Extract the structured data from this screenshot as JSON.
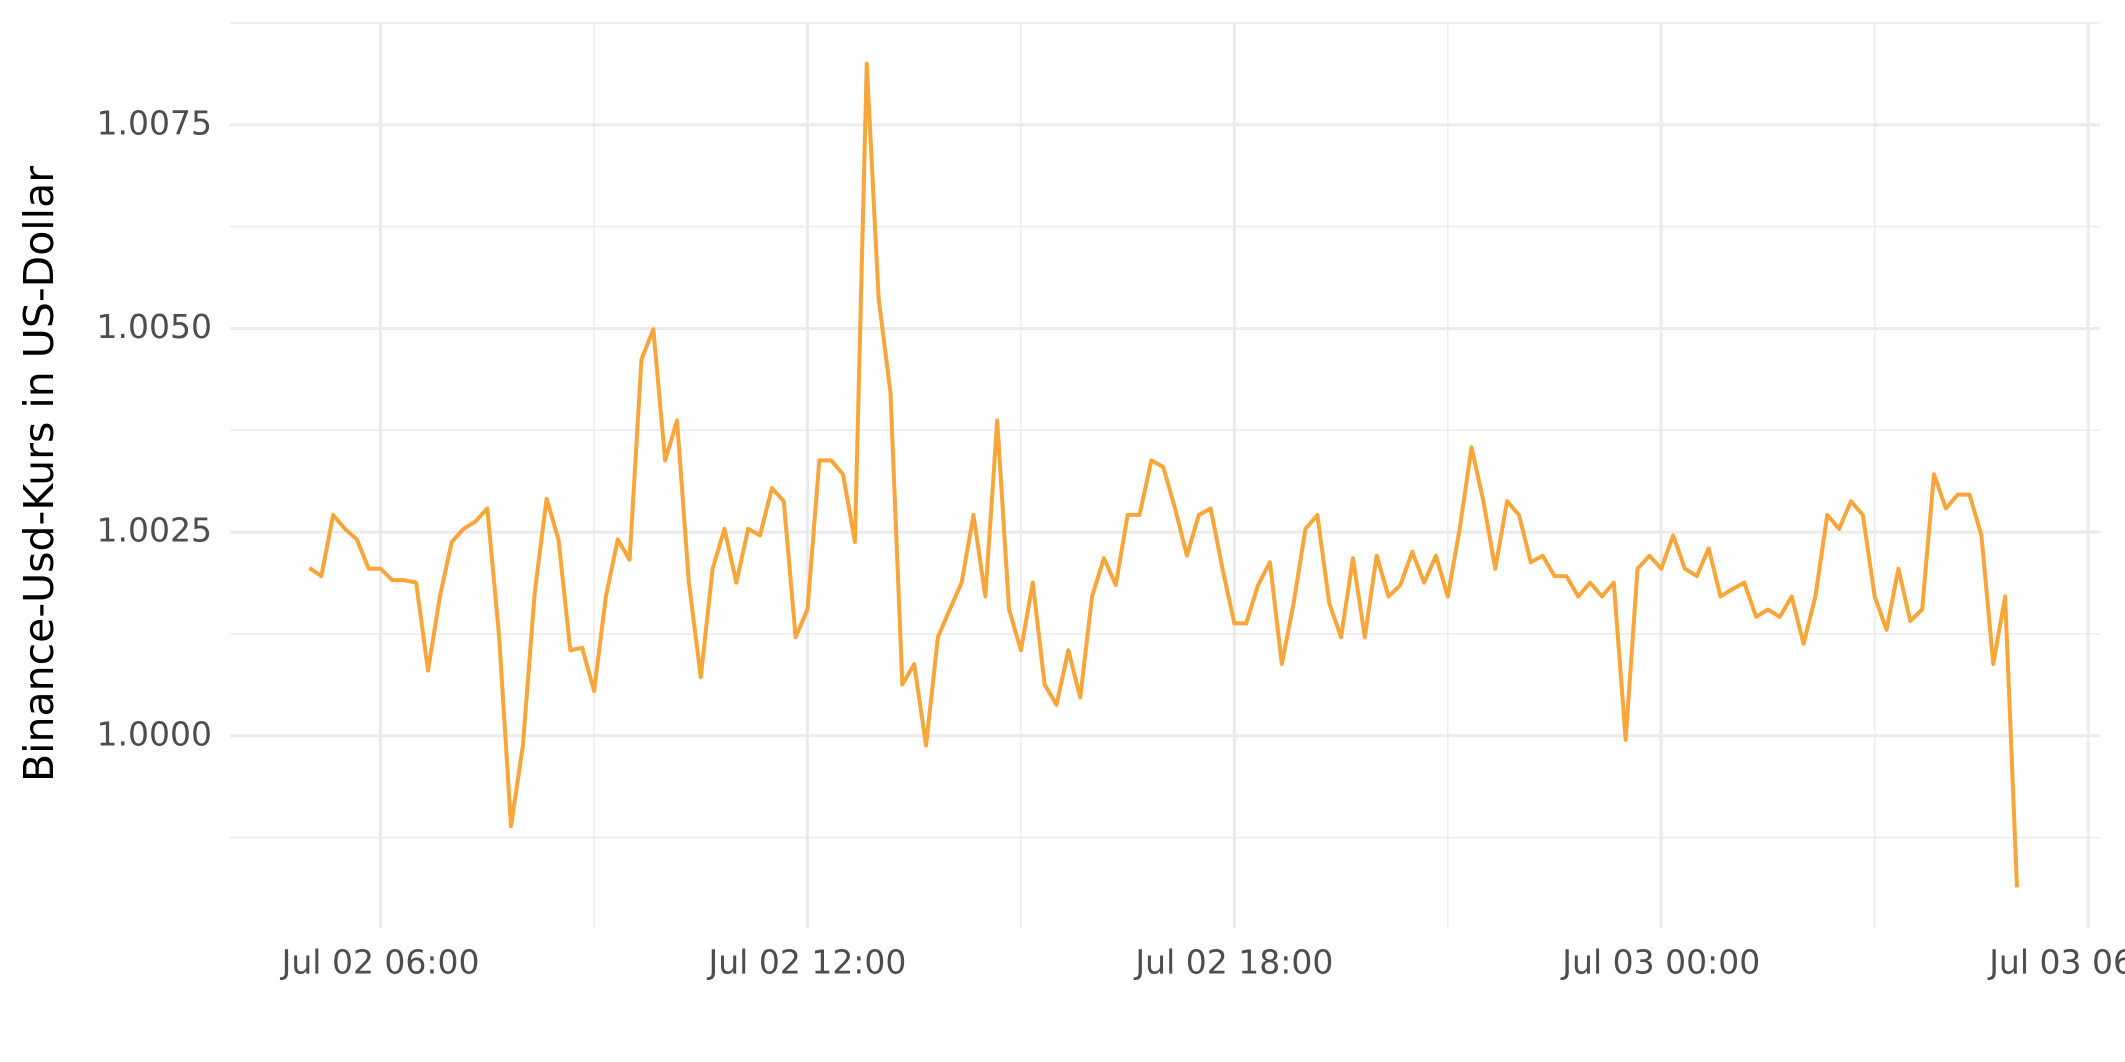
{
  "chart_data": {
    "type": "line",
    "y_label": "Binance-Usd-Kurs in US-Dollar",
    "x": [
      "Jul 02 05:00",
      "Jul 02 05:10",
      "Jul 02 05:20",
      "Jul 02 05:30",
      "Jul 02 05:40",
      "Jul 02 05:50",
      "Jul 02 06:00",
      "Jul 02 06:10",
      "Jul 02 06:20",
      "Jul 02 06:30",
      "Jul 02 06:40",
      "Jul 02 06:50",
      "Jul 02 07:00",
      "Jul 02 07:10",
      "Jul 02 07:20",
      "Jul 02 07:30",
      "Jul 02 07:40",
      "Jul 02 07:50",
      "Jul 02 08:00",
      "Jul 02 08:10",
      "Jul 02 08:20",
      "Jul 02 08:30",
      "Jul 02 08:40",
      "Jul 02 08:50",
      "Jul 02 09:00",
      "Jul 02 09:10",
      "Jul 02 09:20",
      "Jul 02 09:30",
      "Jul 02 09:40",
      "Jul 02 09:50",
      "Jul 02 10:00",
      "Jul 02 10:10",
      "Jul 02 10:20",
      "Jul 02 10:30",
      "Jul 02 10:40",
      "Jul 02 10:50",
      "Jul 02 11:00",
      "Jul 02 11:10",
      "Jul 02 11:20",
      "Jul 02 11:30",
      "Jul 02 11:40",
      "Jul 02 11:50",
      "Jul 02 12:00",
      "Jul 02 12:10",
      "Jul 02 12:20",
      "Jul 02 12:30",
      "Jul 02 12:40",
      "Jul 02 12:50",
      "Jul 02 13:00",
      "Jul 02 13:10",
      "Jul 02 13:20",
      "Jul 02 13:30",
      "Jul 02 13:40",
      "Jul 02 13:50",
      "Jul 02 14:00",
      "Jul 02 14:10",
      "Jul 02 14:20",
      "Jul 02 14:30",
      "Jul 02 14:40",
      "Jul 02 14:50",
      "Jul 02 15:00",
      "Jul 02 15:10",
      "Jul 02 15:20",
      "Jul 02 15:30",
      "Jul 02 15:40",
      "Jul 02 15:50",
      "Jul 02 16:00",
      "Jul 02 16:10",
      "Jul 02 16:20",
      "Jul 02 16:30",
      "Jul 02 16:40",
      "Jul 02 16:50",
      "Jul 02 17:00",
      "Jul 02 17:10",
      "Jul 02 17:20",
      "Jul 02 17:30",
      "Jul 02 17:40",
      "Jul 02 17:50",
      "Jul 02 18:00",
      "Jul 02 18:10",
      "Jul 02 18:20",
      "Jul 02 18:30",
      "Jul 02 18:40",
      "Jul 02 18:50",
      "Jul 02 19:00",
      "Jul 02 19:10",
      "Jul 02 19:20",
      "Jul 02 19:30",
      "Jul 02 19:40",
      "Jul 02 19:50",
      "Jul 02 20:00",
      "Jul 02 20:10",
      "Jul 02 20:20",
      "Jul 02 20:30",
      "Jul 02 20:40",
      "Jul 02 20:50",
      "Jul 02 21:00",
      "Jul 02 21:10",
      "Jul 02 21:20",
      "Jul 02 21:30",
      "Jul 02 21:40",
      "Jul 02 21:50",
      "Jul 02 22:00",
      "Jul 02 22:10",
      "Jul 02 22:20",
      "Jul 02 22:30",
      "Jul 02 22:40",
      "Jul 02 22:50",
      "Jul 02 23:00",
      "Jul 02 23:10",
      "Jul 02 23:20",
      "Jul 02 23:30",
      "Jul 02 23:40",
      "Jul 02 23:50",
      "Jul 03 00:00",
      "Jul 03 00:10",
      "Jul 03 00:20",
      "Jul 03 00:30",
      "Jul 03 00:40",
      "Jul 03 00:50",
      "Jul 03 01:00",
      "Jul 03 01:10",
      "Jul 03 01:20",
      "Jul 03 01:30",
      "Jul 03 01:40",
      "Jul 03 01:50",
      "Jul 03 02:00",
      "Jul 03 02:10",
      "Jul 03 02:20",
      "Jul 03 02:30",
      "Jul 03 02:40",
      "Jul 03 02:50",
      "Jul 03 03:00",
      "Jul 03 03:10",
      "Jul 03 03:20",
      "Jul 03 03:30",
      "Jul 03 03:40",
      "Jul 03 03:50",
      "Jul 03 04:00",
      "Jul 03 04:10",
      "Jul 03 04:20",
      "Jul 03 04:30",
      "Jul 03 04:40",
      "Jul 03 04:50",
      "Jul 03 05:00"
    ],
    "values": [
      1.00206,
      1.00196,
      1.00271,
      1.00254,
      1.00241,
      1.00205,
      1.00205,
      1.00191,
      1.00191,
      1.00188,
      1.0008,
      1.00171,
      1.00238,
      1.00254,
      1.00263,
      1.00279,
      1.00121,
      0.99889,
      0.99988,
      1.00176,
      1.00291,
      1.00241,
      1.00105,
      1.00108,
      1.00055,
      1.00171,
      1.00241,
      1.00216,
      1.00462,
      1.00499,
      1.00338,
      1.00387,
      1.00188,
      1.00072,
      1.00205,
      1.00254,
      1.00188,
      1.00254,
      1.00246,
      1.00304,
      1.00288,
      1.00121,
      1.00155,
      1.00338,
      1.00338,
      1.00321,
      1.00238,
      1.00825,
      1.00537,
      1.00421,
      1.00063,
      1.00088,
      0.99988,
      1.00121,
      1.00155,
      1.00188,
      1.00271,
      1.00171,
      1.00387,
      1.00155,
      1.00105,
      1.00188,
      1.00063,
      1.00038,
      1.00105,
      1.00047,
      1.00171,
      1.00218,
      1.00185,
      1.00271,
      1.00271,
      1.00338,
      1.0033,
      1.00279,
      1.00221,
      1.00271,
      1.00279,
      1.00205,
      1.00138,
      1.00138,
      1.00185,
      1.00213,
      1.00088,
      1.00163,
      1.00254,
      1.00271,
      1.00163,
      1.00121,
      1.00218,
      1.00121,
      1.00221,
      1.00171,
      1.00185,
      1.00226,
      1.00188,
      1.00221,
      1.00171,
      1.00254,
      1.00354,
      1.00288,
      1.00205,
      1.00288,
      1.00271,
      1.00213,
      1.00221,
      1.00196,
      1.00196,
      1.00171,
      1.00188,
      1.00171,
      1.00188,
      0.99995,
      1.00205,
      1.00221,
      1.00205,
      1.00246,
      1.00205,
      1.00196,
      1.0023,
      1.00171,
      1.0018,
      1.00188,
      1.00146,
      1.00155,
      1.00146,
      1.00171,
      1.00113,
      1.00171,
      1.00271,
      1.00254,
      1.00288,
      1.00271,
      1.00171,
      1.0013,
      1.00205,
      1.00141,
      1.00155,
      1.00321,
      1.00279,
      1.00296,
      1.00296,
      1.00246,
      1.00088,
      1.00171,
      0.99814
    ],
    "color": "#f8a53a",
    "xlim": [
      "Jul 02 03:53",
      "Jul 03 06:10"
    ],
    "xticks": [
      "Jul 02 06:00",
      "Jul 02 12:00",
      "Jul 02 18:00",
      "Jul 03 00:00",
      "Jul 03 06:00"
    ],
    "x_minor_ticks": [
      "Jul 02 09:00",
      "Jul 02 15:00",
      "Jul 02 21:00",
      "Jul 03 03:00"
    ],
    "ylim": [
      0.99764,
      1.00875
    ],
    "yticks": [
      {
        "value": 1,
        "label": "1.0000"
      },
      {
        "value": 1.0025,
        "label": "1.0025"
      },
      {
        "value": 1.005,
        "label": "1.0050"
      },
      {
        "value": 1.0075,
        "label": "1.0075"
      }
    ],
    "y_minor_ticks": [
      0.99875,
      1.00125,
      1.00375,
      1.00625,
      1.00875
    ],
    "grid": true
  }
}
